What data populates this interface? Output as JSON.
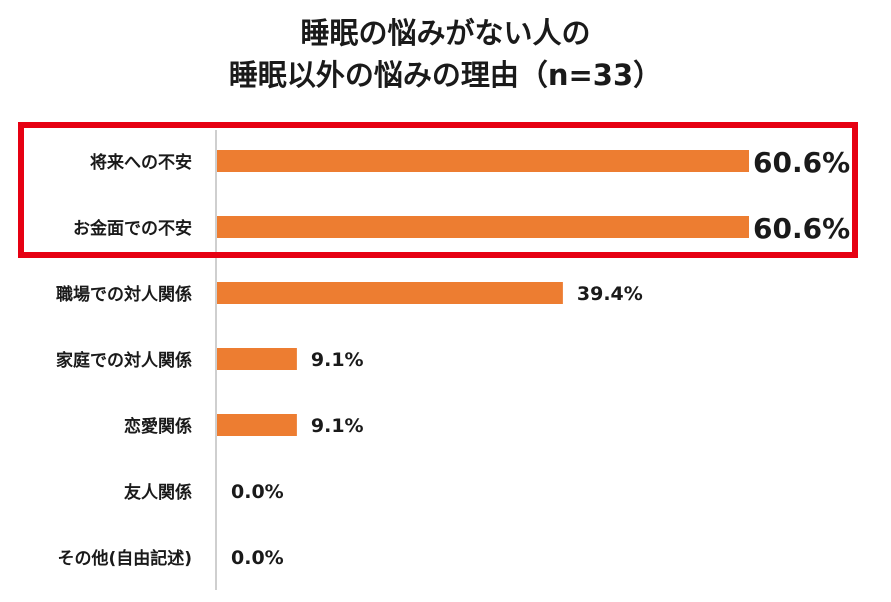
{
  "title_line1": "睡眠の悩みがない人の",
  "title_line2": "睡眠以外の悩みの理由（n=33）",
  "chart_data": {
    "type": "bar",
    "orientation": "horizontal",
    "title": "睡眠の悩みがない人の 睡眠以外の悩みの理由（n=33）",
    "categories": [
      "将来への不安",
      "お金面での不安",
      "職場での対人関係",
      "家庭での対人関係",
      "恋愛関係",
      "友人関係",
      "その他(自由記述)"
    ],
    "values": [
      60.6,
      60.6,
      39.4,
      9.1,
      9.1,
      0.0,
      0.0
    ],
    "labels": [
      "60.6%",
      "60.6%",
      "39.4%",
      "9.1%",
      "9.1%",
      "0.0%",
      "0.0%"
    ],
    "highlighted": [
      0,
      1
    ],
    "xlim": [
      0,
      60.6
    ],
    "bar_color": "#ed7d31",
    "highlight_color": "#e60012",
    "axis_color": "#bfbfbf"
  }
}
